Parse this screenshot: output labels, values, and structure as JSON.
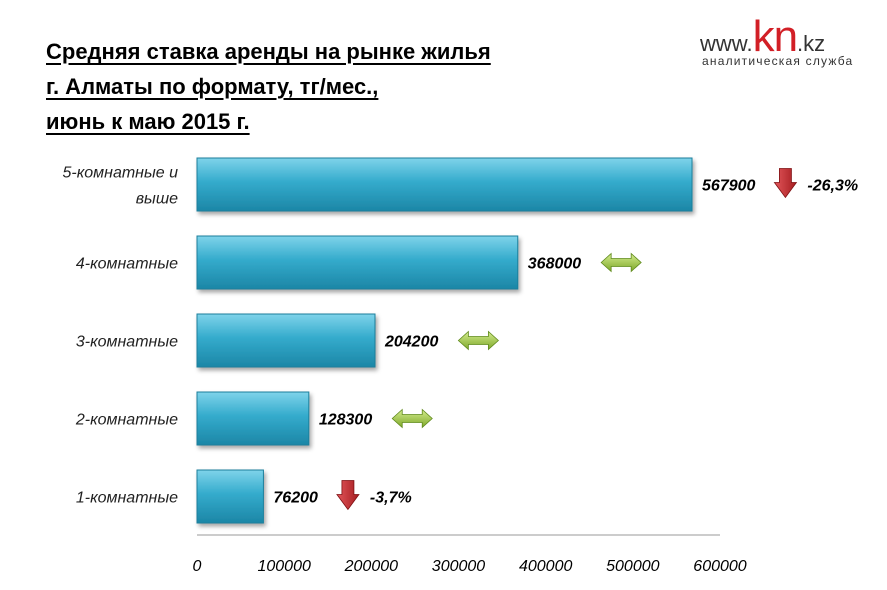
{
  "title_lines": [
    "Средняя ставка аренды на рынке жилья",
    "г. Алматы по формату, тг/мес.,",
    "июнь к маю 2015 г."
  ],
  "logo": {
    "prefix": "www.",
    "brand": "kn",
    "suffix": ".kz",
    "subtitle": "аналитическая служба"
  },
  "colors": {
    "bar": "#2fa7c9",
    "down_arrow": "#c0282c",
    "neutral_arrow": "#8dbb3a"
  },
  "chart_data": {
    "type": "bar",
    "orientation": "horizontal",
    "title": "Средняя ставка аренды на рынке жилья г. Алматы по формату, тг/мес., июнь к маю 2015 г.",
    "categories": [
      [
        "5-комнатные и",
        "выше"
      ],
      [
        "4-комнатные"
      ],
      [
        "3-комнатные"
      ],
      [
        "2-комнатные"
      ],
      [
        "1-комнатные"
      ]
    ],
    "values": [
      567900,
      368000,
      204200,
      128300,
      76200
    ],
    "value_labels": [
      "567900",
      "368000",
      "204200",
      "128300",
      "76200"
    ],
    "changes": [
      {
        "direction": "down",
        "label": "-26,3%"
      },
      {
        "direction": "neutral",
        "label": ""
      },
      {
        "direction": "neutral",
        "label": ""
      },
      {
        "direction": "neutral",
        "label": ""
      },
      {
        "direction": "down",
        "label": "-3,7%"
      }
    ],
    "xlim": [
      0,
      600000
    ],
    "xticks": [
      0,
      100000,
      200000,
      300000,
      400000,
      500000,
      600000
    ],
    "xtick_labels": [
      "0",
      "100000",
      "200000",
      "300000",
      "400000",
      "500000",
      "600000"
    ],
    "grid": false,
    "legend": "none"
  }
}
